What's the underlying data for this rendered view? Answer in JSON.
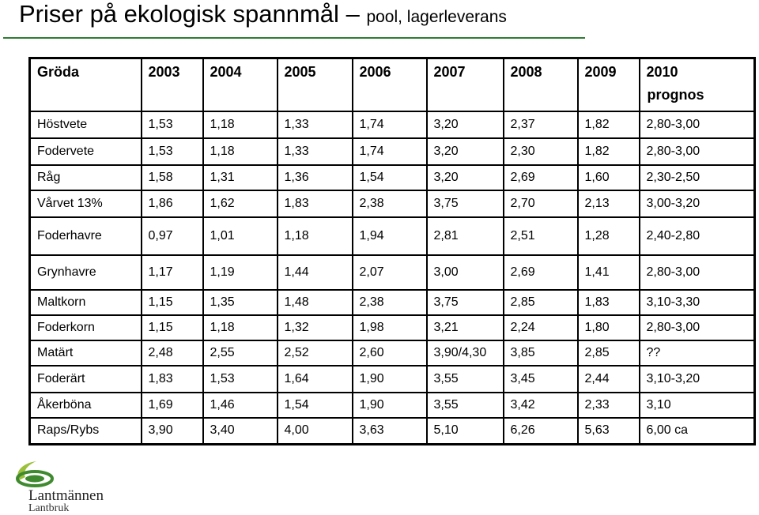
{
  "title": {
    "main": "Priser på ekologisk spannmål",
    "dash": "–",
    "sub": "pool, lagerleverans"
  },
  "table": {
    "headers": [
      "Gröda",
      "2003",
      "2004",
      "2005",
      "2006",
      "2007",
      "2008",
      "2009",
      "2010"
    ],
    "header_extra": "prognos",
    "rows": [
      [
        "Höstvete",
        "1,53",
        "1,18",
        "1,33",
        "1,74",
        "3,20",
        "2,37",
        "1,82",
        "2,80-3,00"
      ],
      [
        "Fodervete",
        "1,53",
        "1,18",
        "1,33",
        "1,74",
        "3,20",
        "2,30",
        "1,82",
        "2,80-3,00"
      ],
      [
        "Råg",
        "1,58",
        "1,31",
        "1,36",
        "1,54",
        "3,20",
        "2,69",
        "1,60",
        "2,30-2,50"
      ],
      [
        "Vårvet 13%",
        "1,86",
        "1,62",
        "1,83",
        "2,38",
        "3,75",
        "2,70",
        "2,13",
        "3,00-3,20"
      ],
      [
        "Foderhavre",
        "0,97",
        "1,01",
        "1,18",
        "1,94",
        "2,81",
        "2,51",
        "1,28",
        "2,40-2,80"
      ],
      [
        "Grynhavre",
        "1,17",
        "1,19",
        "1,44",
        "2,07",
        "3,00",
        "2,69",
        "1,41",
        "2,80-3,00"
      ],
      [
        "Maltkorn",
        "1,15",
        "1,35",
        "1,48",
        "2,38",
        "3,75",
        "2,85",
        "1,83",
        "3,10-3,30"
      ],
      [
        "Foderkorn",
        "1,15",
        "1,18",
        "1,32",
        "1,98",
        "3,21",
        "2,24",
        "1,80",
        "2,80-3,00"
      ],
      [
        "Matärt",
        "2,48",
        "2,55",
        "2,52",
        "2,60",
        "3,90/4,30",
        "3,85",
        "2,85",
        "??"
      ],
      [
        "Foderärt",
        "1,83",
        "1,53",
        "1,64",
        "1,90",
        "3,55",
        "3,45",
        "2,44",
        "3,10-3,20"
      ],
      [
        "Åkerböna",
        "1,69",
        "1,46",
        "1,54",
        "1,90",
        "3,55",
        "3,42",
        "2,33",
        "3,10"
      ],
      [
        "Raps/Rybs",
        "3,90",
        "3,40",
        "4,00",
        "3,63",
        "5,10",
        "6,26",
        "5,63",
        "6,00 ca"
      ]
    ],
    "row_heights": [
      34,
      34,
      32,
      34,
      48,
      44,
      32,
      32,
      32,
      34,
      32,
      34
    ]
  },
  "logo": {
    "name": "Lantmännen",
    "unit": "Lantbruk",
    "icon": "lantmannen-swirl-icon",
    "colors": {
      "green": "#3f8a2f",
      "light_green": "#9bc03b"
    }
  },
  "colors": {
    "title_rule": "#2e7d32"
  }
}
